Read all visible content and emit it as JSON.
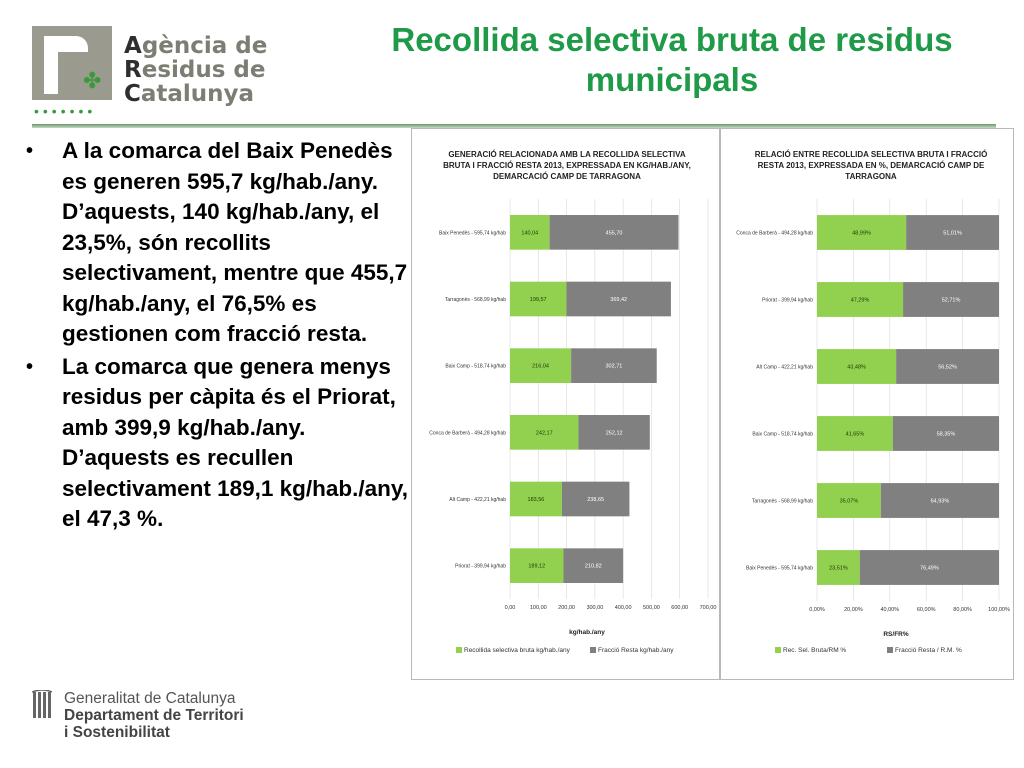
{
  "header": {
    "logo_lines": [
      {
        "initial": "A",
        "rest": "gència de"
      },
      {
        "initial": "R",
        "rest": "esidus de"
      },
      {
        "initial": "C",
        "rest": "atalunya"
      }
    ],
    "logo_dots": "•••••••",
    "title": "Recollida selectiva bruta de residus municipals"
  },
  "bullets": [
    "A la comarca del Baix Penedès es generen 595,7 kg/hab./any. D’aquests, 140 kg/hab./any, el 23,5%, són recollits selectivament, mentre que 455,7 kg/hab./any, el 76,5% es gestionen com fracció resta.",
    "La comarca que genera menys residus per càpita és el Priorat, amb 399,9 kg/hab./any. D’aquests es recullen selectivament 189,1 kg/hab./any, el 47,3 %."
  ],
  "bullet_symbol": "•",
  "colors": {
    "green": "#92d050",
    "gray": "#808080",
    "title_green": "#1e9a48"
  },
  "footer": {
    "line1": "Generalitat de Catalunya",
    "line2": "Departament de Territori",
    "line3": "i Sostenibilitat"
  },
  "chart_data": [
    {
      "type": "bar",
      "orientation": "horizontal",
      "stacked": true,
      "title": "GENERACIÓ RELACIONADA AMB LA RECOLLIDA SELECTIVA BRUTA I FRACCIÓ RESTA 2013, EXPRESSADA EN KG/HAB./ANY, DEMARCACIÓ CAMP DE TARRAGONA",
      "categories": [
        "Baix Penedès - 595,74 kg/hab",
        "Tarragonès - 568,99 kg/hab",
        "Baix Camp - 518,74 kg/hab",
        "Conca de Barberà - 494,28 kg/hab",
        "Alt Camp - 422,21 kg/hab",
        "Priorat - 399,94 kg/hab"
      ],
      "series": [
        {
          "name": "Recollida selectiva bruta kg/hab./any",
          "color": "#92d050",
          "values": [
            140.04,
            199.57,
            216.04,
            242.17,
            183.56,
            189.12
          ],
          "labels": [
            "140,04",
            "199,57",
            "216,04",
            "242,17",
            "183,56",
            "189,12"
          ]
        },
        {
          "name": "Fracció Resta kg/hab./any",
          "color": "#808080",
          "values": [
            455.7,
            369.42,
            302.71,
            252.12,
            238.65,
            210.82
          ],
          "labels": [
            "455,70",
            "369,42",
            "302,71",
            "252,12",
            "238,65",
            "210,82"
          ]
        }
      ],
      "xlim": [
        0,
        700
      ],
      "xticks": [
        "0,00",
        "100,00",
        "200,00",
        "300,00",
        "400,00",
        "500,00",
        "600,00",
        "700,00"
      ],
      "xlabel": "kg/hab./any",
      "legend_position": "bottom",
      "grid": true
    },
    {
      "type": "bar",
      "orientation": "horizontal",
      "stacked": true,
      "title": "RELACIÓ ENTRE RECOLLIDA SELECTIVA BRUTA I FRACCIÓ RESTA 2013, EXPRESSADA EN %, DEMARCACIÓ CAMP DE TARRAGONA",
      "categories": [
        "Conca de Barberà - 494,28 kg/hab",
        "Priorat - 399,94 kg/hab",
        "Alt Camp - 422,21 kg/hab",
        "Baix Camp - 518,74 kg/hab",
        "Tarragonès - 568,99 kg/hab",
        "Baix Penedès - 595,74 kg/hab"
      ],
      "series": [
        {
          "name": "Rec. Sel. Bruta/RM %",
          "color": "#92d050",
          "values": [
            48.99,
            47.29,
            43.48,
            41.65,
            35.07,
            23.51
          ],
          "labels": [
            "48,99%",
            "47,29%",
            "43,48%",
            "41,65%",
            "35,07%",
            "23,51%"
          ]
        },
        {
          "name": "Fracció Resta / R.M. %",
          "color": "#808080",
          "values": [
            51.01,
            52.71,
            56.52,
            58.35,
            64.93,
            76.49
          ],
          "labels": [
            "51,01%",
            "52,71%",
            "56,52%",
            "58,35%",
            "64,93%",
            "76,49%"
          ]
        }
      ],
      "xlim": [
        0,
        100
      ],
      "xticks": [
        "0,00%",
        "20,00%",
        "40,00%",
        "60,00%",
        "80,00%",
        "100,00%"
      ],
      "xlabel": "RS/FR%",
      "legend_position": "bottom",
      "grid": true
    }
  ]
}
